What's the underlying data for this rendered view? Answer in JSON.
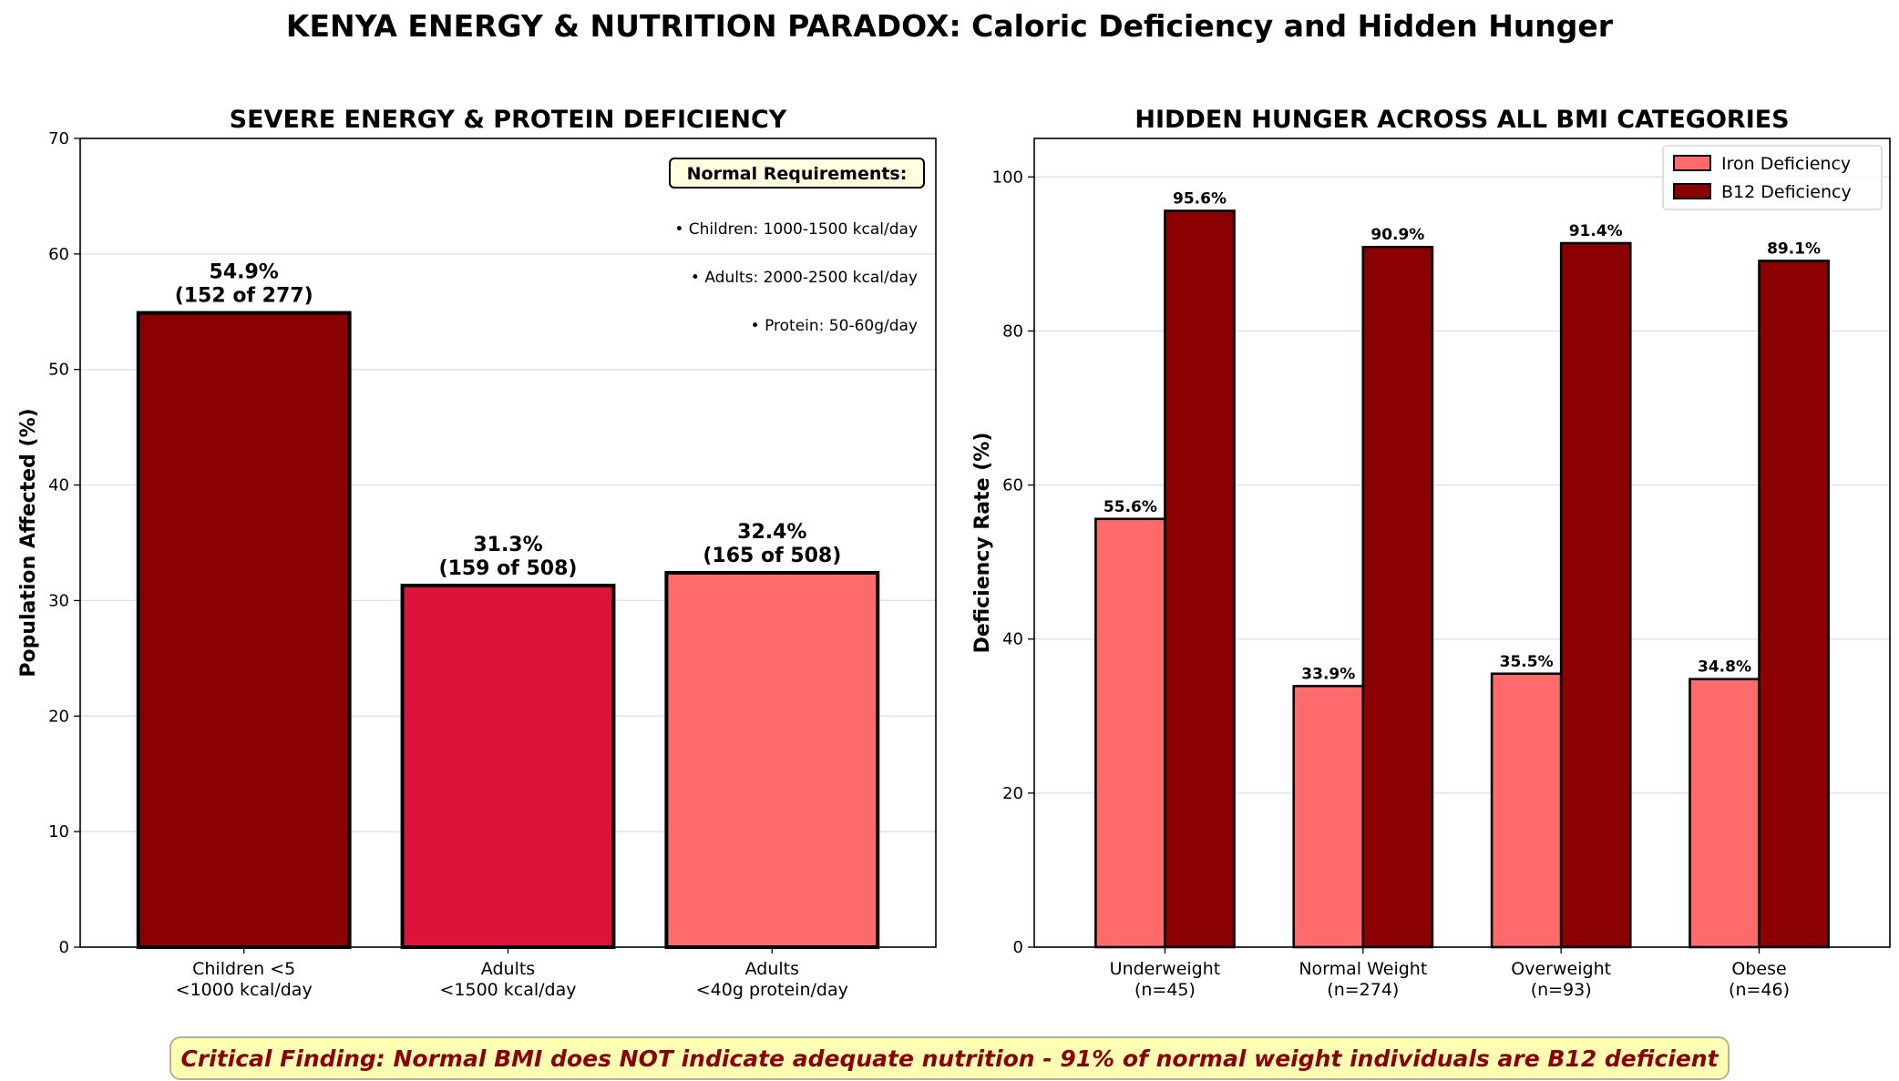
{
  "figure": {
    "title": "KENYA ENERGY & NUTRITION PARADOX: Caloric Deficiency and Hidden Hunger",
    "footnote": "Critical Finding: Normal BMI does NOT indicate adequate nutrition - 91% of normal weight individuals are B12 deficient"
  },
  "chart_data": [
    {
      "type": "bar",
      "title": "SEVERE ENERGY & PROTEIN DEFICIENCY",
      "xlabel": "",
      "ylabel": "Population Affected (%)",
      "ylim": [
        0,
        70
      ],
      "yticks": [
        0,
        10,
        20,
        30,
        40,
        50,
        60,
        70
      ],
      "grid": "y",
      "categories": [
        "Children <5\n<1000 kcal/day",
        "Adults\n<1500 kcal/day",
        "Adults\n<40g protein/day"
      ],
      "values": [
        54.9,
        31.3,
        32.4
      ],
      "colors": [
        "#8b0000",
        "#dc143c",
        "#ff6b6b"
      ],
      "data_labels": [
        "54.9%\n(152 of 277)",
        "31.3%\n(159 of 508)",
        "32.4%\n(165 of 508)"
      ],
      "annotation": {
        "heading": "Normal Requirements:",
        "lines": [
          "• Children: 1000-1500 kcal/day",
          "• Adults: 2000-2500 kcal/day",
          "• Protein: 50-60g/day"
        ]
      }
    },
    {
      "type": "bar",
      "title": "HIDDEN HUNGER ACROSS ALL BMI CATEGORIES",
      "xlabel": "",
      "ylabel": "Deficiency Rate (%)",
      "ylim": [
        0,
        105
      ],
      "yticks": [
        0,
        20,
        40,
        60,
        80,
        100
      ],
      "grid": "y",
      "legend": "top-right",
      "categories": [
        "Underweight\n(n=45)",
        "Normal Weight\n(n=274)",
        "Overweight\n(n=93)",
        "Obese\n(n=46)"
      ],
      "series": [
        {
          "name": "Iron Deficiency",
          "color": "#ff6b6b",
          "values": [
            55.6,
            33.9,
            35.5,
            34.8
          ],
          "data_labels": [
            "55.6%",
            "33.9%",
            "35.5%",
            "34.8%"
          ]
        },
        {
          "name": "B12 Deficiency",
          "color": "#8b0000",
          "values": [
            95.6,
            90.9,
            91.4,
            89.1
          ],
          "data_labels": [
            "95.6%",
            "90.9%",
            "91.4%",
            "89.1%"
          ]
        }
      ]
    }
  ]
}
